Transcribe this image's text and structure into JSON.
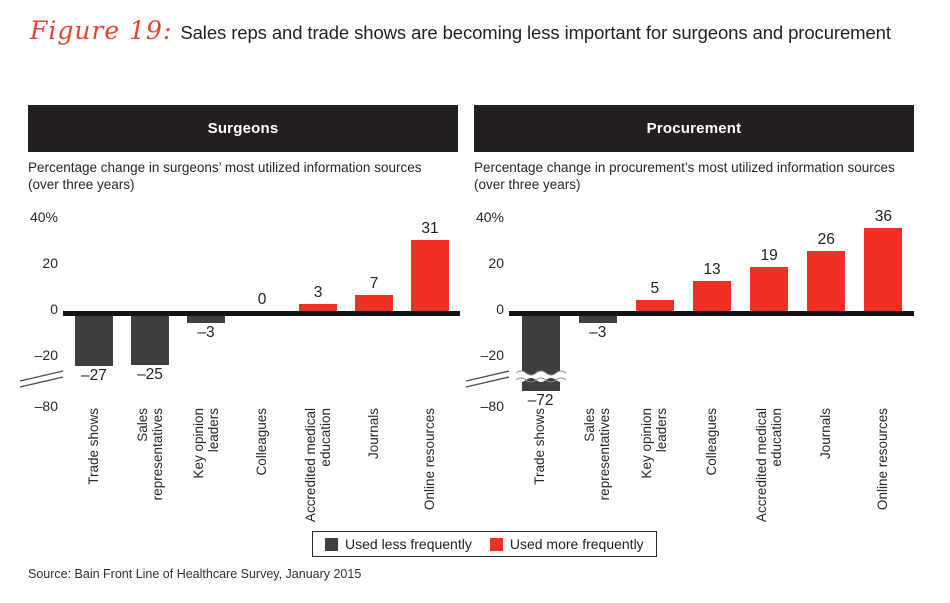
{
  "figure": {
    "label": "Figure 19:",
    "title": "Sales reps and trade shows are becoming less important for surgeons and procurement"
  },
  "colors": {
    "positive_bar": "#ee3124",
    "negative_bar": "#3f3f3f",
    "header_bg": "#231f20",
    "accent_red": "#e8432f",
    "axis_line": "#161314"
  },
  "legend": {
    "items": [
      {
        "label": "Used less frequently",
        "color": "#3f3f3f"
      },
      {
        "label": "Used more frequently",
        "color": "#ee3124"
      }
    ]
  },
  "source": "Source: Bain Front Line of Healthcare Survey, January 2015",
  "chart_data": [
    {
      "type": "bar",
      "header": "Surgeons",
      "subtitle_lines": [
        "Percentage change in surgeons’ most utilized information sources",
        "(over three years)"
      ],
      "categories": [
        "Trade shows",
        "Sales representatives",
        "Key opinion leaders",
        "Colleagues",
        "Accredited medical education",
        "Journals",
        "Online resources"
      ],
      "category_lines": [
        [
          "Trade shows"
        ],
        [
          "Sales",
          "representatives"
        ],
        [
          "Key opinion",
          "leaders"
        ],
        [
          "Colleagues"
        ],
        [
          "Accredited medical",
          "education"
        ],
        [
          "Journals"
        ],
        [
          "Online resources"
        ]
      ],
      "values": [
        -27,
        -25,
        -3,
        0,
        3,
        7,
        31
      ],
      "yticks": [
        "40%",
        "20",
        "0",
        "–20",
        "–80"
      ],
      "ylabel": "",
      "xlabel": "",
      "axis_note": "axis break between –20 and –80",
      "grid": false
    },
    {
      "type": "bar",
      "header": "Procurement",
      "subtitle_lines": [
        "Percentage change in procurement’s most utilized information sources",
        "(over three years)"
      ],
      "categories": [
        "Trade shows",
        "Sales representatives",
        "Key opinion leaders",
        "Colleagues",
        "Accredited medical education",
        "Journals",
        "Online resources"
      ],
      "category_lines": [
        [
          "Trade shows"
        ],
        [
          "Sales",
          "representatives"
        ],
        [
          "Key opinion",
          "leaders"
        ],
        [
          "Colleagues"
        ],
        [
          "Accredited medical",
          "education"
        ],
        [
          "Journals"
        ],
        [
          "Online resources"
        ]
      ],
      "values": [
        -72,
        -3,
        5,
        13,
        19,
        26,
        36
      ],
      "yticks": [
        "40%",
        "20",
        "0",
        "–20",
        "–80"
      ],
      "ylabel": "",
      "xlabel": "",
      "axis_note": "axis break between –20 and –80; –72 bar drawn with break",
      "grid": false
    }
  ]
}
